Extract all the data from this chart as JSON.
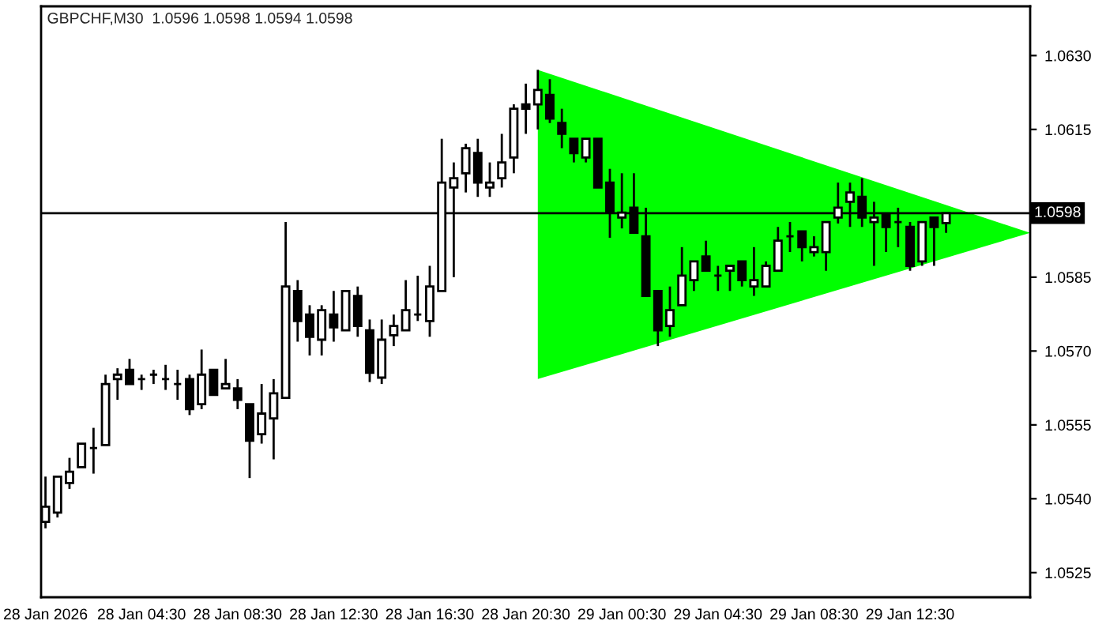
{
  "chart_data": {
    "type": "candlestick",
    "title": "GBPCHF,M30  1.0596 1.0598 1.0594 1.0598",
    "x": [
      "2026-01-28T00:30",
      "2026-01-28T01:00",
      "2026-01-28T01:30",
      "2026-01-28T02:00",
      "2026-01-28T02:30",
      "2026-01-28T03:00",
      "2026-01-28T03:30",
      "2026-01-28T04:00",
      "2026-01-28T04:30",
      "2026-01-28T05:00",
      "2026-01-28T05:30",
      "2026-01-28T06:00",
      "2026-01-28T06:30",
      "2026-01-28T07:00",
      "2026-01-28T07:30",
      "2026-01-28T08:00",
      "2026-01-28T08:30",
      "2026-01-28T09:00",
      "2026-01-28T09:30",
      "2026-01-28T10:00",
      "2026-01-28T10:30",
      "2026-01-28T11:00",
      "2026-01-28T11:30",
      "2026-01-28T12:00",
      "2026-01-28T12:30",
      "2026-01-28T13:00",
      "2026-01-28T13:30",
      "2026-01-28T14:00",
      "2026-01-28T14:30",
      "2026-01-28T15:00",
      "2026-01-28T15:30",
      "2026-01-28T16:00",
      "2026-01-28T16:30",
      "2026-01-28T17:00",
      "2026-01-28T17:30",
      "2026-01-28T18:00",
      "2026-01-28T18:30",
      "2026-01-28T19:00",
      "2026-01-28T19:30",
      "2026-01-28T20:00",
      "2026-01-28T20:30",
      "2026-01-28T21:00",
      "2026-01-28T21:30",
      "2026-01-28T22:00",
      "2026-01-28T22:30",
      "2026-01-28T23:00",
      "2026-01-28T23:30",
      "2026-01-29T00:00",
      "2026-01-29T00:30",
      "2026-01-29T01:00",
      "2026-01-29T01:30",
      "2026-01-29T02:00",
      "2026-01-29T02:30",
      "2026-01-29T03:00",
      "2026-01-29T03:30",
      "2026-01-29T04:00",
      "2026-01-29T04:30",
      "2026-01-29T05:00",
      "2026-01-29T05:30",
      "2026-01-29T06:00",
      "2026-01-29T06:30",
      "2026-01-29T07:00",
      "2026-01-29T07:30",
      "2026-01-29T08:00",
      "2026-01-29T08:30",
      "2026-01-29T09:00",
      "2026-01-29T09:30",
      "2026-01-29T10:00",
      "2026-01-29T10:30",
      "2026-01-29T11:00",
      "2026-01-29T11:30",
      "2026-01-29T12:00",
      "2026-01-29T12:30",
      "2026-01-29T13:00",
      "2026-01-29T13:30",
      "2026-01-29T14:00"
    ],
    "ohlc": [
      [
        1.05353,
        1.05445,
        1.0534,
        1.05384
      ],
      [
        1.05372,
        1.05445,
        1.05362,
        1.05445
      ],
      [
        1.05432,
        1.05483,
        1.0542,
        1.05455
      ],
      [
        1.05464,
        1.05512,
        1.05464,
        1.05512
      ],
      [
        1.05503,
        1.05544,
        1.05451,
        1.05503
      ],
      [
        1.05509,
        1.05652,
        1.05509,
        1.05633
      ],
      [
        1.05643,
        1.05665,
        1.05601,
        1.05652
      ],
      [
        1.05662,
        1.05684,
        1.05633,
        1.05633
      ],
      [
        1.05643,
        1.05652,
        1.05621,
        1.05643
      ],
      [
        1.05652,
        1.05662,
        1.05633,
        1.05652
      ],
      [
        1.05643,
        1.05672,
        1.05621,
        1.05643
      ],
      [
        1.05633,
        1.05662,
        1.05601,
        1.05633
      ],
      [
        1.05643,
        1.05652,
        1.0557,
        1.05582
      ],
      [
        1.05592,
        1.05703,
        1.05582,
        1.05652
      ],
      [
        1.05662,
        1.05662,
        1.05611,
        1.05611
      ],
      [
        1.05624,
        1.05684,
        1.05624,
        1.05633
      ],
      [
        1.05624,
        1.05643,
        1.05582,
        1.05601
      ],
      [
        1.05592,
        1.05592,
        1.05442,
        1.05518
      ],
      [
        1.05531,
        1.05633,
        1.05512,
        1.05573
      ],
      [
        1.05563,
        1.05643,
        1.0548,
        1.05614
      ],
      [
        1.05605,
        1.05962,
        1.05605,
        1.05831
      ],
      [
        1.05822,
        1.05844,
        1.05719,
        1.05761
      ],
      [
        1.05774,
        1.05793,
        1.05691,
        1.05729
      ],
      [
        1.05723,
        1.05793,
        1.05691,
        1.05783
      ],
      [
        1.05774,
        1.05822,
        1.05719,
        1.05748
      ],
      [
        1.05742,
        1.05822,
        1.05742,
        1.05822
      ],
      [
        1.05812,
        1.05831,
        1.05729,
        1.05751
      ],
      [
        1.05742,
        1.05764,
        1.05637,
        1.05656
      ],
      [
        1.05646,
        1.05764,
        1.05633,
        1.05723
      ],
      [
        1.05732,
        1.05774,
        1.0571,
        1.05751
      ],
      [
        1.05742,
        1.05844,
        1.05742,
        1.05783
      ],
      [
        1.05774,
        1.05853,
        1.05761,
        1.05774
      ],
      [
        1.05761,
        1.05873,
        1.05729,
        1.05831
      ],
      [
        1.05822,
        1.06131,
        1.05822,
        1.06042
      ],
      [
        1.06032,
        1.06083,
        1.0585,
        1.06051
      ],
      [
        1.06061,
        1.06121,
        1.06022,
        1.06112
      ],
      [
        1.06102,
        1.06131,
        1.06013,
        1.06042
      ],
      [
        1.06032,
        1.06083,
        1.06013,
        1.06042
      ],
      [
        1.06051,
        1.06141,
        1.06032,
        1.06083
      ],
      [
        1.06093,
        1.06201,
        1.06061,
        1.06192
      ],
      [
        1.06201,
        1.06243,
        1.06141,
        1.06192
      ],
      [
        1.06201,
        1.06271,
        1.0615,
        1.0623
      ],
      [
        1.0622,
        1.06252,
        1.06163,
        1.06172
      ],
      [
        1.06163,
        1.06192,
        1.06112,
        1.06141
      ],
      [
        1.06131,
        1.06131,
        1.06083,
        1.06102
      ],
      [
        1.06093,
        1.06131,
        1.06083,
        1.06131
      ],
      [
        1.06131,
        1.06131,
        1.06032,
        1.06032
      ],
      [
        1.06042,
        1.0607,
        1.0593,
        1.05981
      ],
      [
        1.05971,
        1.06061,
        1.05949,
        1.05981
      ],
      [
        1.05991,
        1.06061,
        1.0594,
        1.0594
      ],
      [
        1.05933,
        1.05991,
        1.05812,
        1.05812
      ],
      [
        1.05822,
        1.05822,
        1.0571,
        1.05742
      ],
      [
        1.05751,
        1.05831,
        1.05729,
        1.05783
      ],
      [
        1.05793,
        1.05911,
        1.05793,
        1.05853
      ],
      [
        1.05844,
        1.05882,
        1.05822,
        1.05882
      ],
      [
        1.05892,
        1.05924,
        1.05863,
        1.05863
      ],
      [
        1.05853,
        1.05873,
        1.05822,
        1.05853
      ],
      [
        1.05863,
        1.05873,
        1.05822,
        1.05873
      ],
      [
        1.05882,
        1.05882,
        1.05831,
        1.05844
      ],
      [
        1.05831,
        1.05911,
        1.05812,
        1.05844
      ],
      [
        1.05831,
        1.05882,
        1.05831,
        1.05873
      ],
      [
        1.05863,
        1.05952,
        1.05863,
        1.05924
      ],
      [
        1.05933,
        1.05962,
        1.05901,
        1.05933
      ],
      [
        1.05943,
        1.05943,
        1.05882,
        1.05911
      ],
      [
        1.05901,
        1.05933,
        1.05892,
        1.05911
      ],
      [
        1.05901,
        1.05962,
        1.05863,
        1.05962
      ],
      [
        1.05971,
        1.06042,
        1.05959,
        1.05991
      ],
      [
        1.06003,
        1.06042,
        1.05952,
        1.06022
      ],
      [
        1.06013,
        1.06051,
        1.05952,
        1.05971
      ],
      [
        1.05962,
        1.06003,
        1.05873,
        1.05971
      ],
      [
        1.05978,
        1.05978,
        1.05901,
        1.05952
      ],
      [
        1.05962,
        1.05991,
        1.05911,
        1.05962
      ],
      [
        1.05952,
        1.05962,
        1.05863,
        1.05873
      ],
      [
        1.05882,
        1.05962,
        1.05873,
        1.05962
      ],
      [
        1.05971,
        1.05971,
        1.05873,
        1.05952
      ],
      [
        1.0596,
        1.0598,
        1.0594,
        1.0598
      ]
    ],
    "series": [
      {
        "type": "area",
        "color": "#00ff00",
        "x": [
          "2026-01-28T21:00",
          "2026-01-29T17:30",
          "2026-01-28T21:00"
        ],
        "values": [
          1.06271,
          1.0594,
          1.05643
        ]
      }
    ],
    "ref_lines": [
      {
        "axis": "y",
        "value": 1.0598,
        "label": "1.0598",
        "color": "#000000"
      }
    ],
    "xlim": [
      "2026-01-28T00:19",
      "2026-01-29T17:30"
    ],
    "xticks": [
      {
        "value": "2026-01-28T00:30",
        "label": "28 Jan 2026"
      },
      {
        "value": "2026-01-28T04:30",
        "label": "28 Jan 04:30"
      },
      {
        "value": "2026-01-28T08:30",
        "label": "28 Jan 08:30"
      },
      {
        "value": "2026-01-28T12:30",
        "label": "28 Jan 12:30"
      },
      {
        "value": "2026-01-28T16:30",
        "label": "28 Jan 16:30"
      },
      {
        "value": "2026-01-28T20:30",
        "label": "28 Jan 20:30"
      },
      {
        "value": "2026-01-29T00:30",
        "label": "29 Jan 00:30"
      },
      {
        "value": "2026-01-29T04:30",
        "label": "29 Jan 04:30"
      },
      {
        "value": "2026-01-29T08:30",
        "label": "29 Jan 08:30"
      },
      {
        "value": "2026-01-29T12:30",
        "label": "29 Jan 12:30"
      }
    ],
    "ylim": [
      1.052,
      1.064
    ],
    "yticks": [
      {
        "value": 1.0525,
        "label": "1.0525"
      },
      {
        "value": 1.054,
        "label": "1.0540"
      },
      {
        "value": 1.0555,
        "label": "1.0555"
      },
      {
        "value": 1.057,
        "label": "1.0570"
      },
      {
        "value": 1.0585,
        "label": "1.0585"
      },
      {
        "value": 1.06,
        "label": null
      },
      {
        "value": 1.0615,
        "label": "1.0615"
      },
      {
        "value": 1.063,
        "label": "1.0630"
      }
    ],
    "grid": false,
    "legend": false
  }
}
